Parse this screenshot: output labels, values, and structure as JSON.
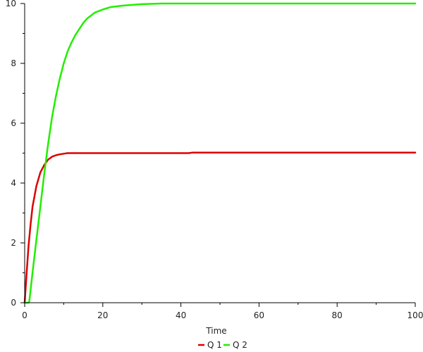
{
  "chart_data": {
    "type": "line",
    "title": "",
    "xlabel": "Time",
    "ylabel": "",
    "xlim": [
      0,
      100
    ],
    "ylim": [
      0,
      10
    ],
    "xticks": [
      0,
      20,
      40,
      60,
      80,
      100
    ],
    "yticks": [
      0,
      2,
      4,
      6,
      8,
      10
    ],
    "grid": false,
    "legend_position": "bottom",
    "series": [
      {
        "name": "Q 1",
        "color": "#dd0000",
        "x": [
          0,
          0.5,
          1,
          1.5,
          2,
          3,
          4,
          5,
          6,
          7,
          8,
          9,
          10,
          11,
          12,
          15,
          20,
          30,
          40,
          42,
          43,
          60,
          80,
          100
        ],
        "y": [
          0,
          1.0,
          1.9,
          2.6,
          3.2,
          3.9,
          4.35,
          4.6,
          4.78,
          4.88,
          4.93,
          4.96,
          4.98,
          5.0,
          5.0,
          5.0,
          5.0,
          5.0,
          5.0,
          5.0,
          5.02,
          5.02,
          5.02,
          5.02
        ]
      },
      {
        "name": "Q 2",
        "color": "#22ee00",
        "x": [
          0,
          1,
          1.2,
          2,
          3,
          4,
          5,
          6,
          7,
          8,
          9,
          10,
          11,
          12,
          13,
          14,
          15,
          16,
          18,
          20,
          22,
          25,
          28,
          30,
          33,
          35,
          40,
          60,
          80,
          100
        ],
        "y": [
          0,
          0,
          0.05,
          1.0,
          2.1,
          3.2,
          4.3,
          5.3,
          6.2,
          6.9,
          7.5,
          8.0,
          8.4,
          8.7,
          8.95,
          9.15,
          9.35,
          9.5,
          9.7,
          9.8,
          9.88,
          9.93,
          9.96,
          9.98,
          9.99,
          10.0,
          10.0,
          10.0,
          10.0,
          10.0
        ]
      }
    ]
  }
}
